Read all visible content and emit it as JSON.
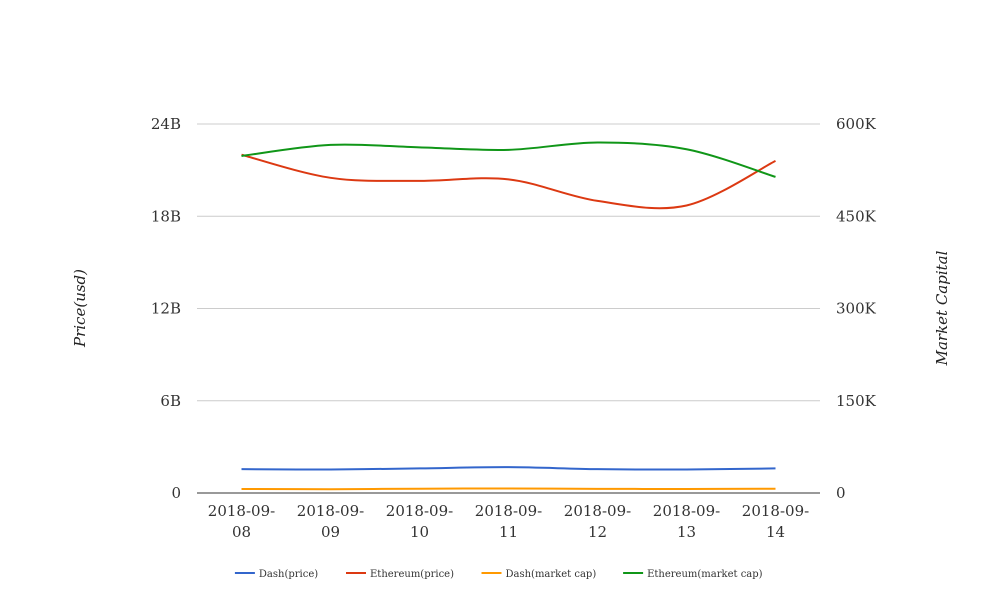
{
  "chart_data": {
    "type": "line",
    "categories": [
      "2018-09-08",
      "2018-09-09",
      "2018-09-10",
      "2018-09-11",
      "2018-09-12",
      "2018-09-13",
      "2018-09-14"
    ],
    "category_labels": [
      [
        "2018-09-",
        "08"
      ],
      [
        "2018-09-",
        "09"
      ],
      [
        "2018-09-",
        "10"
      ],
      [
        "2018-09-",
        "11"
      ],
      [
        "2018-09-",
        "12"
      ],
      [
        "2018-09-",
        "13"
      ],
      [
        "2018-09-",
        "14"
      ]
    ],
    "ylabel_left": "Price(usd)",
    "ylabel_right": "Market Capital",
    "yticks_left": [
      "0",
      "6B",
      "12B",
      "18B",
      "24B"
    ],
    "yticks_right": [
      "0",
      "150K",
      "300K",
      "450K",
      "600K"
    ],
    "ylim_left": [
      0,
      24000000000
    ],
    "ylim_right": [
      0,
      600000
    ],
    "grid": true,
    "legend_position": "bottom",
    "series": [
      {
        "name": "Dash(price)",
        "axis": "left",
        "color": "#3366cc",
        "values": [
          1550000000,
          1530000000,
          1600000000,
          1680000000,
          1550000000,
          1530000000,
          1600000000
        ]
      },
      {
        "name": "Ethereum(price)",
        "axis": "left",
        "color": "#dc3912",
        "values": [
          22000000000,
          20500000000,
          20300000000,
          20400000000,
          19000000000,
          18700000000,
          21600000000
        ]
      },
      {
        "name": "Dash(market cap)",
        "axis": "right",
        "color": "#ff9900",
        "values": [
          6500,
          6200,
          7000,
          7300,
          6800,
          6500,
          7000
        ]
      },
      {
        "name": "Ethereum(market cap)",
        "axis": "right",
        "color": "#109618",
        "values": [
          548000,
          566000,
          562000,
          558000,
          570000,
          559000,
          514000
        ]
      }
    ]
  }
}
